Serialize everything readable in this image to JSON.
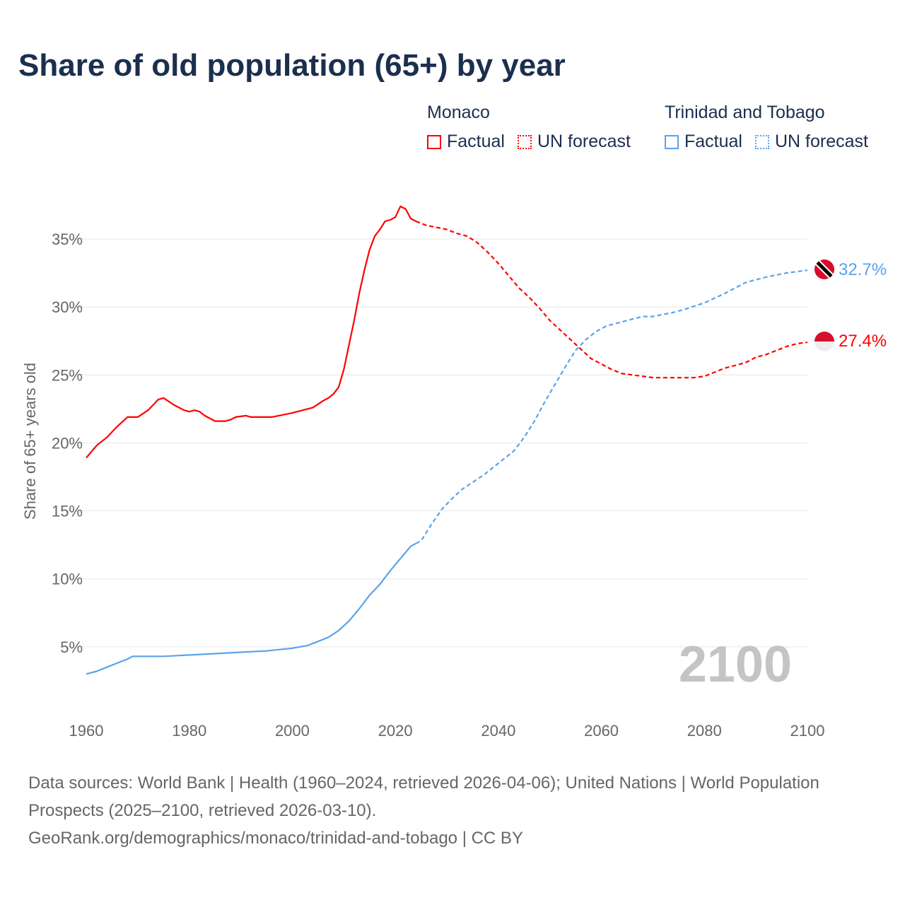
{
  "title": "Share of old population (65+) by year",
  "legend": {
    "groups": [
      {
        "name": "Monaco",
        "color": "#ff0000",
        "items": [
          "Factual",
          "UN forecast"
        ]
      },
      {
        "name": "Trinidad and Tobago",
        "color": "#5ba3e8",
        "items": [
          "Factual",
          "UN forecast"
        ]
      }
    ]
  },
  "year_watermark": "2100",
  "source": {
    "line1": "Data sources: World Bank | Health (1960–2024, retrieved 2026-04-06); United Nations | World Population Prospects (2025–2100, retrieved 2026-03-10).",
    "line2": "GeoRank.org/demographics/monaco/trinidad-and-tobago | CC BY"
  },
  "chart_data": {
    "type": "line",
    "title": "Share of old population (65+) by year",
    "xlabel": "",
    "ylabel": "Share of 65+ years old",
    "xlim": [
      1960,
      2100
    ],
    "ylim": [
      0,
      38
    ],
    "x_ticks": [
      "1960",
      "1980",
      "2000",
      "2020",
      "2040",
      "2060",
      "2080",
      "2100"
    ],
    "y_ticks": [
      5,
      10,
      15,
      20,
      25,
      30,
      35
    ],
    "y_tick_labels": [
      "5%",
      "10%",
      "15%",
      "20%",
      "25%",
      "30%",
      "35%"
    ],
    "grid": true,
    "legend_position": "top-right",
    "series": [
      {
        "name": "Monaco",
        "color": "#ff0000",
        "end_label": "27.4%",
        "factual": [
          [
            1960,
            18.9
          ],
          [
            1962,
            19.8
          ],
          [
            1964,
            20.4
          ],
          [
            1966,
            21.2
          ],
          [
            1968,
            21.9
          ],
          [
            1970,
            21.9
          ],
          [
            1972,
            22.4
          ],
          [
            1974,
            23.2
          ],
          [
            1975,
            23.3
          ],
          [
            1977,
            22.8
          ],
          [
            1979,
            22.4
          ],
          [
            1980,
            22.3
          ],
          [
            1981,
            22.4
          ],
          [
            1982,
            22.3
          ],
          [
            1983,
            22.0
          ],
          [
            1985,
            21.6
          ],
          [
            1987,
            21.6
          ],
          [
            1988,
            21.7
          ],
          [
            1989,
            21.9
          ],
          [
            1991,
            22.0
          ],
          [
            1992,
            21.9
          ],
          [
            1996,
            21.9
          ],
          [
            2000,
            22.2
          ],
          [
            2004,
            22.6
          ],
          [
            2006,
            23.1
          ],
          [
            2007,
            23.3
          ],
          [
            2008,
            23.6
          ],
          [
            2009,
            24.1
          ],
          [
            2010,
            25.4
          ],
          [
            2011,
            27.2
          ],
          [
            2012,
            29.0
          ],
          [
            2013,
            31.0
          ],
          [
            2014,
            32.7
          ],
          [
            2015,
            34.2
          ],
          [
            2016,
            35.2
          ],
          [
            2017,
            35.7
          ],
          [
            2018,
            36.3
          ],
          [
            2019,
            36.4
          ],
          [
            2020,
            36.6
          ],
          [
            2021,
            37.4
          ],
          [
            2022,
            37.2
          ],
          [
            2023,
            36.5
          ],
          [
            2024,
            36.3
          ]
        ],
        "forecast": [
          [
            2024,
            36.3
          ],
          [
            2026,
            36.0
          ],
          [
            2030,
            35.7
          ],
          [
            2032,
            35.4
          ],
          [
            2034,
            35.2
          ],
          [
            2036,
            34.7
          ],
          [
            2038,
            34.0
          ],
          [
            2040,
            33.2
          ],
          [
            2042,
            32.3
          ],
          [
            2044,
            31.4
          ],
          [
            2046,
            30.7
          ],
          [
            2048,
            29.9
          ],
          [
            2050,
            29.0
          ],
          [
            2052,
            28.3
          ],
          [
            2054,
            27.6
          ],
          [
            2056,
            26.9
          ],
          [
            2058,
            26.2
          ],
          [
            2060,
            25.8
          ],
          [
            2062,
            25.4
          ],
          [
            2064,
            25.1
          ],
          [
            2066,
            25.0
          ],
          [
            2068,
            24.9
          ],
          [
            2070,
            24.8
          ],
          [
            2078,
            24.8
          ],
          [
            2080,
            24.9
          ],
          [
            2082,
            25.2
          ],
          [
            2084,
            25.5
          ],
          [
            2086,
            25.7
          ],
          [
            2088,
            25.9
          ],
          [
            2090,
            26.3
          ],
          [
            2092,
            26.5
          ],
          [
            2094,
            26.8
          ],
          [
            2096,
            27.1
          ],
          [
            2098,
            27.3
          ],
          [
            2100,
            27.4
          ]
        ]
      },
      {
        "name": "Trinidad and Tobago",
        "color": "#5ba3e8",
        "end_label": "32.7%",
        "factual": [
          [
            1960,
            3.0
          ],
          [
            1962,
            3.2
          ],
          [
            1964,
            3.5
          ],
          [
            1966,
            3.8
          ],
          [
            1968,
            4.1
          ],
          [
            1969,
            4.3
          ],
          [
            1975,
            4.3
          ],
          [
            1980,
            4.4
          ],
          [
            1985,
            4.5
          ],
          [
            1990,
            4.6
          ],
          [
            1995,
            4.7
          ],
          [
            2000,
            4.9
          ],
          [
            2003,
            5.1
          ],
          [
            2005,
            5.4
          ],
          [
            2007,
            5.7
          ],
          [
            2009,
            6.2
          ],
          [
            2011,
            6.9
          ],
          [
            2013,
            7.8
          ],
          [
            2015,
            8.8
          ],
          [
            2017,
            9.6
          ],
          [
            2019,
            10.6
          ],
          [
            2021,
            11.5
          ],
          [
            2023,
            12.4
          ],
          [
            2024,
            12.6
          ]
        ],
        "forecast": [
          [
            2024,
            12.6
          ],
          [
            2025,
            12.8
          ],
          [
            2027,
            14.0
          ],
          [
            2029,
            15.1
          ],
          [
            2031,
            15.9
          ],
          [
            2033,
            16.6
          ],
          [
            2035,
            17.1
          ],
          [
            2037,
            17.6
          ],
          [
            2039,
            18.2
          ],
          [
            2041,
            18.8
          ],
          [
            2043,
            19.4
          ],
          [
            2045,
            20.4
          ],
          [
            2047,
            21.6
          ],
          [
            2049,
            23.0
          ],
          [
            2051,
            24.3
          ],
          [
            2053,
            25.6
          ],
          [
            2055,
            26.8
          ],
          [
            2057,
            27.6
          ],
          [
            2059,
            28.2
          ],
          [
            2061,
            28.6
          ],
          [
            2063,
            28.8
          ],
          [
            2065,
            29.0
          ],
          [
            2068,
            29.3
          ],
          [
            2070,
            29.3
          ],
          [
            2074,
            29.6
          ],
          [
            2076,
            29.8
          ],
          [
            2080,
            30.3
          ],
          [
            2084,
            31.0
          ],
          [
            2086,
            31.4
          ],
          [
            2088,
            31.8
          ],
          [
            2092,
            32.2
          ],
          [
            2096,
            32.5
          ],
          [
            2098,
            32.6
          ],
          [
            2100,
            32.7
          ]
        ]
      }
    ]
  }
}
